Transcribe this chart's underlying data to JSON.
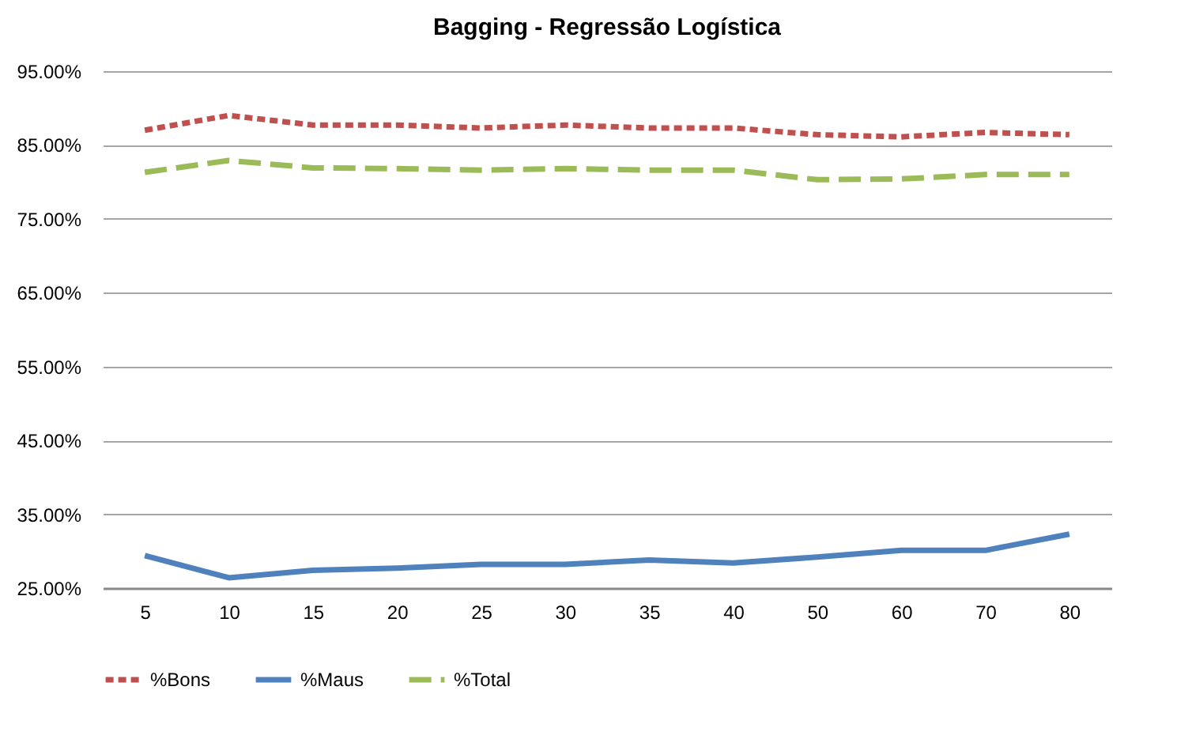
{
  "chart_data": {
    "type": "line",
    "title": "Bagging - Regressão Logística",
    "categories": [
      "5",
      "10",
      "15",
      "20",
      "25",
      "30",
      "35",
      "40",
      "50",
      "60",
      "70",
      "80"
    ],
    "series": [
      {
        "name": "%Bons",
        "color": "#c0504d",
        "line_style": "dotted",
        "values": [
          87.0,
          89.0,
          87.7,
          87.7,
          87.3,
          87.7,
          87.3,
          87.3,
          86.4,
          86.1,
          86.7,
          86.4
        ]
      },
      {
        "name": "%Maus",
        "color": "#4f81bd",
        "line_style": "solid",
        "values": [
          29.4,
          26.4,
          27.4,
          27.7,
          28.2,
          28.2,
          28.8,
          28.4,
          29.2,
          30.1,
          30.1,
          32.3
        ]
      },
      {
        "name": "%Total",
        "color": "#9bbb59",
        "line_style": "dashed",
        "values": [
          81.3,
          82.9,
          81.9,
          81.8,
          81.6,
          81.8,
          81.6,
          81.6,
          80.3,
          80.4,
          81.0,
          81.0
        ]
      }
    ],
    "ylim": [
      25,
      95
    ],
    "yticks": [
      {
        "value": 25,
        "label": "25.00%"
      },
      {
        "value": 35,
        "label": "35.00%"
      },
      {
        "value": 45,
        "label": "45.00%"
      },
      {
        "value": 55,
        "label": "55.00%"
      },
      {
        "value": 65,
        "label": "65.00%"
      },
      {
        "value": 75,
        "label": "75.00%"
      },
      {
        "value": 85,
        "label": "85.00%"
      },
      {
        "value": 95,
        "label": "95.00%"
      }
    ],
    "grid": "y",
    "legend": "bottom"
  }
}
